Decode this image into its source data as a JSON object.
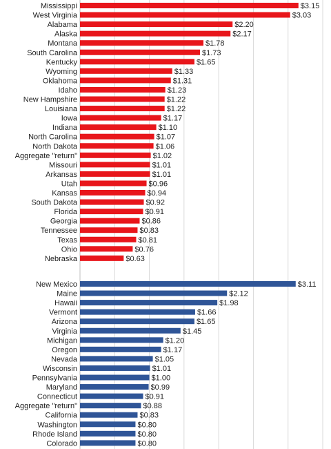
{
  "chart_data": [
    {
      "type": "bar",
      "orientation": "horizontal",
      "color": "#e8161b",
      "value_prefix": "$",
      "xlim": [
        0,
        3.5
      ],
      "grid": "vertical",
      "categories": [
        "Mississippi",
        "West Virginia",
        "Alabama",
        "Alaska",
        "Montana",
        "South Carolina",
        "Kentucky",
        "Wyoming",
        "Oklahoma",
        "Idaho",
        "New Hampshire",
        "Louisiana",
        "Iowa",
        "Indiana",
        "North Carolina",
        "North Dakota",
        "Aggregate \"return\"",
        "Missouri",
        "Arkansas",
        "Utah",
        "Kansas",
        "South Dakota",
        "Florida",
        "Georgia",
        "Tennessee",
        "Texas",
        "Ohio",
        "Nebraska"
      ],
      "values": [
        3.15,
        3.03,
        2.2,
        2.17,
        1.78,
        1.73,
        1.65,
        1.33,
        1.31,
        1.23,
        1.22,
        1.22,
        1.17,
        1.1,
        1.07,
        1.06,
        1.02,
        1.01,
        1.01,
        0.96,
        0.94,
        0.92,
        0.91,
        0.86,
        0.83,
        0.81,
        0.76,
        0.63
      ]
    },
    {
      "type": "bar",
      "orientation": "horizontal",
      "color": "#2f5597",
      "value_prefix": "$",
      "xlim": [
        0,
        3.5
      ],
      "grid": "vertical",
      "categories": [
        "New Mexico",
        "Maine",
        "Hawaii",
        "Vermont",
        "Arizona",
        "Virginia",
        "Michigan",
        "Oregon",
        "Nevada",
        "Wisconsin",
        "Pennsylvania",
        "Maryland",
        "Connecticut",
        "Aggregate \"return\"",
        "California",
        "Washington",
        "Rhode Island",
        "Colorado"
      ],
      "values": [
        3.11,
        2.12,
        1.98,
        1.66,
        1.65,
        1.45,
        1.2,
        1.17,
        1.05,
        1.01,
        1.0,
        0.99,
        0.91,
        0.88,
        0.83,
        0.8,
        0.8,
        0.8
      ]
    }
  ]
}
